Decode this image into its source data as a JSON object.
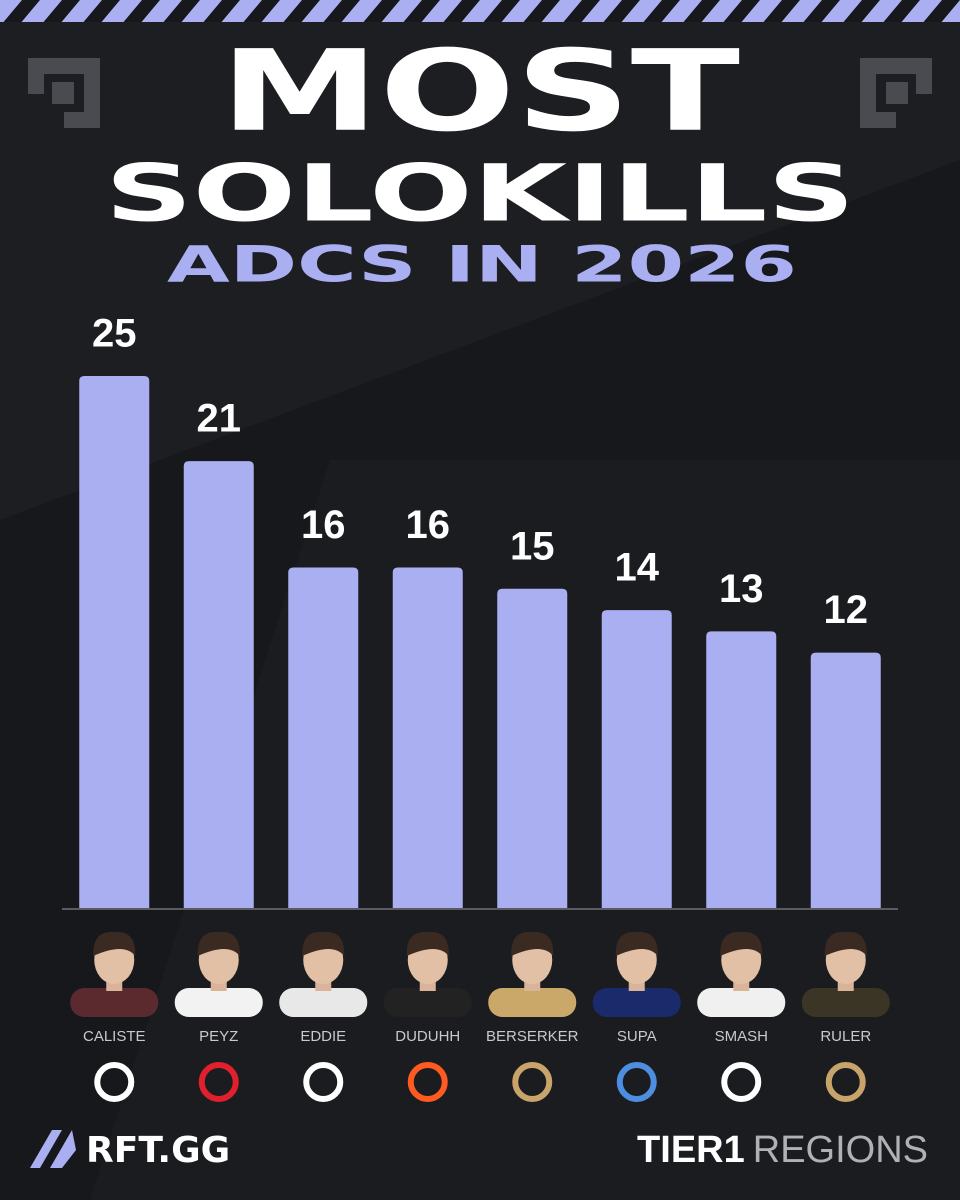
{
  "chart_data": {
    "type": "bar",
    "title_lines": [
      "MOST",
      "SOLOKILLS"
    ],
    "subtitle": "ADCS IN 2026",
    "categories": [
      "CALISTE",
      "PEYZ",
      "EDDIE",
      "DUDUHH",
      "BERSERKER",
      "SUPA",
      "SMASH",
      "RULER"
    ],
    "values": [
      25,
      21,
      16,
      16,
      15,
      14,
      13,
      12
    ],
    "color": "#a9aff0"
  },
  "footer": {
    "brand": "RFT.GG",
    "tagline_bold": "TIER1",
    "tagline": "REGIONS"
  }
}
